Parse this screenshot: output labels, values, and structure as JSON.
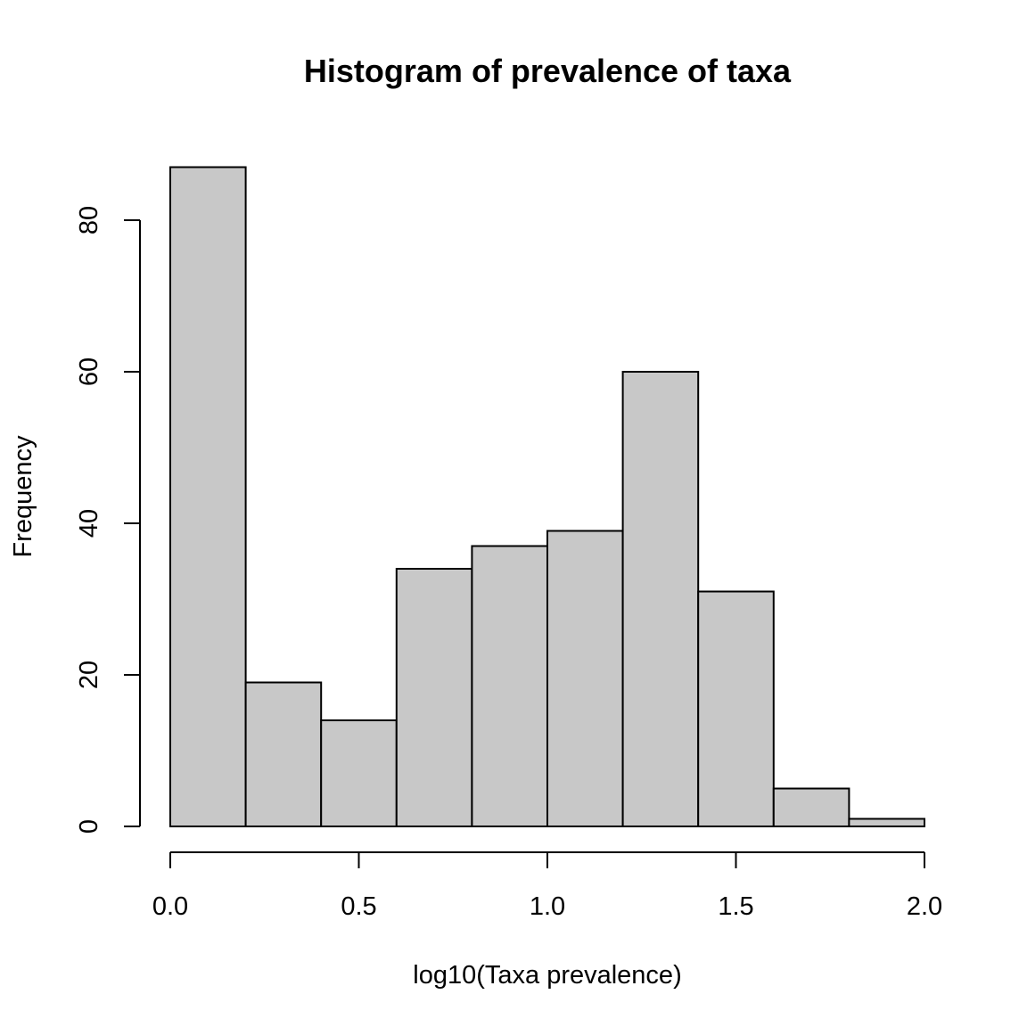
{
  "chart_data": {
    "type": "bar",
    "title": "Histogram of prevalence of taxa",
    "xlabel": "log10(Taxa prevalence)",
    "ylabel": "Frequency",
    "bins": [
      {
        "x0": 0.0,
        "x1": 0.2,
        "count": 87
      },
      {
        "x0": 0.2,
        "x1": 0.4,
        "count": 19
      },
      {
        "x0": 0.4,
        "x1": 0.6,
        "count": 14
      },
      {
        "x0": 0.6,
        "x1": 0.8,
        "count": 34
      },
      {
        "x0": 0.8,
        "x1": 1.0,
        "count": 37
      },
      {
        "x0": 1.0,
        "x1": 1.2,
        "count": 39
      },
      {
        "x0": 1.2,
        "x1": 1.4,
        "count": 60
      },
      {
        "x0": 1.4,
        "x1": 1.6,
        "count": 31
      },
      {
        "x0": 1.6,
        "x1": 1.8,
        "count": 5
      },
      {
        "x0": 1.8,
        "x1": 2.0,
        "count": 1
      }
    ],
    "xticks": [
      0.0,
      0.5,
      1.0,
      1.5,
      2.0
    ],
    "xtick_labels": [
      "0.0",
      "0.5",
      "1.0",
      "1.5",
      "2.0"
    ],
    "yticks": [
      0,
      20,
      40,
      60,
      80
    ],
    "ytick_labels": [
      "0",
      "20",
      "40",
      "60",
      "80"
    ],
    "xlim": [
      0,
      2
    ],
    "ylim": [
      0,
      80
    ],
    "grid": false,
    "legend": "none",
    "bar_color": "#c8c8c8",
    "edge_color": "#000000"
  }
}
